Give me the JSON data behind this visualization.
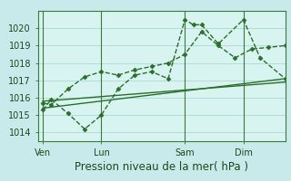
{
  "bg_color": "#c8eaea",
  "plot_bg": "#d8f4f0",
  "grid_color": "#b0dcd8",
  "line_color": "#2a6e2a",
  "xlabel": "Pression niveau de la mer( hPa )",
  "xlabel_fontsize": 8.5,
  "ylim": [
    1013.5,
    1021.0
  ],
  "yticks": [
    1014,
    1015,
    1016,
    1017,
    1018,
    1019,
    1020
  ],
  "tick_fontsize": 7,
  "xtick_labels": [
    "Ven",
    "Lun",
    "Sam",
    "Dim"
  ],
  "xtick_positions": [
    0,
    3.5,
    8.5,
    12
  ],
  "xlim": [
    -0.3,
    14.5
  ],
  "series1_x": [
    0,
    0.5,
    1.5,
    2.5,
    3.5,
    4.5,
    5.5,
    6.5,
    7.5,
    8.5,
    9.0,
    9.5,
    10.5,
    12.0,
    13.0,
    14.5
  ],
  "series1_y": [
    1015.3,
    1015.9,
    1015.1,
    1014.2,
    1015.0,
    1016.5,
    1017.3,
    1017.5,
    1017.1,
    1020.5,
    1020.2,
    1020.2,
    1019.1,
    1020.5,
    1018.3,
    1017.1
  ],
  "series2_x": [
    0,
    0.5,
    1.5,
    2.5,
    3.5,
    4.5,
    5.5,
    6.5,
    7.5,
    8.5,
    9.5,
    10.5,
    11.5,
    12.5,
    13.5,
    14.5
  ],
  "series2_y": [
    1015.7,
    1015.6,
    1016.5,
    1017.2,
    1017.5,
    1017.3,
    1017.6,
    1017.8,
    1018.0,
    1018.5,
    1019.8,
    1019.0,
    1018.3,
    1018.8,
    1018.9,
    1019.0
  ],
  "series3_x": [
    0,
    14.5
  ],
  "series3_y": [
    1015.4,
    1017.1
  ],
  "series4_x": [
    0,
    14.5
  ],
  "series4_y": [
    1015.8,
    1016.9
  ],
  "vline_positions": [
    0,
    3.5,
    8.5,
    12.0
  ]
}
